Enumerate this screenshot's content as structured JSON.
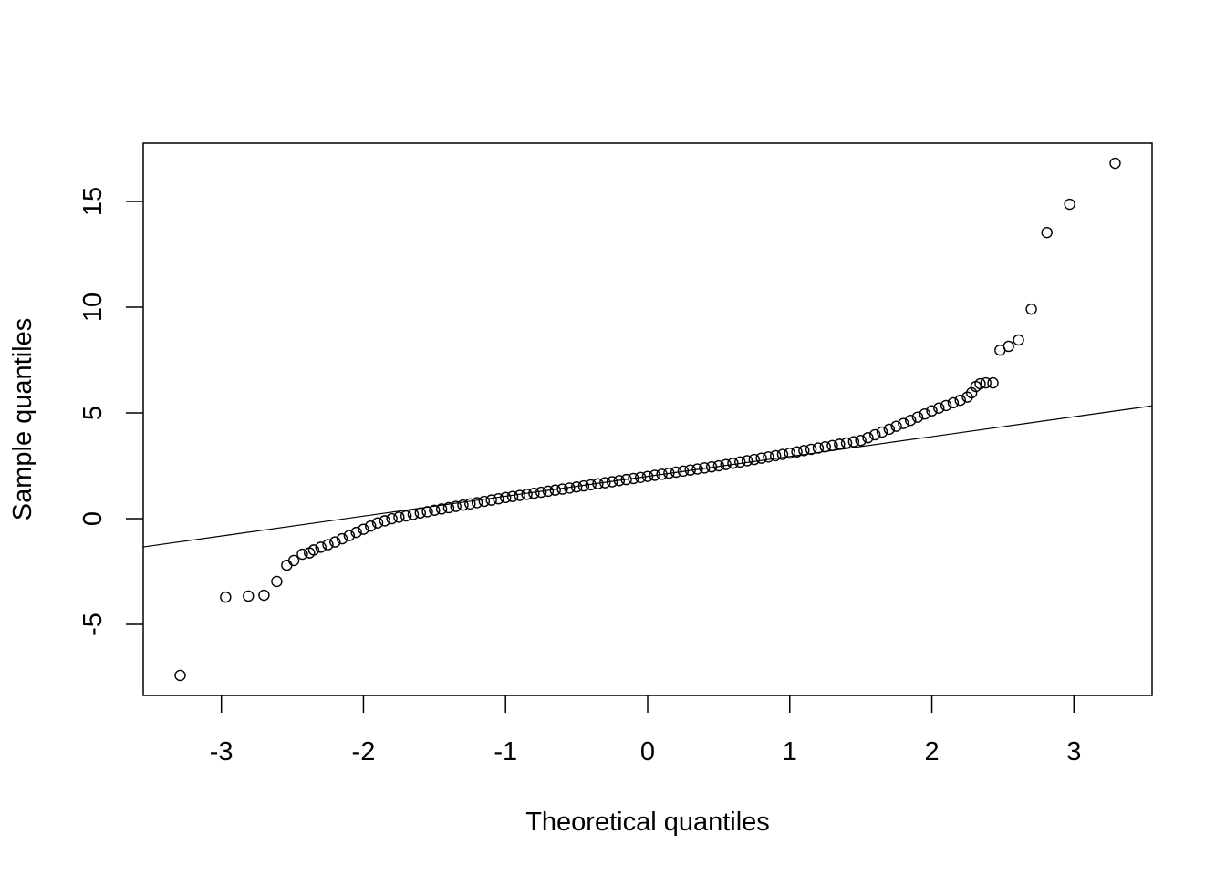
{
  "chart_data": {
    "type": "scatter",
    "title": "",
    "xlabel": "Theoretical quantiles",
    "ylabel": "Sample quantiles",
    "xlim": [
      -3.55,
      3.55
    ],
    "ylim": [
      -8.36,
      17.76
    ],
    "xticks": [
      -3,
      -2,
      -1,
      0,
      1,
      2,
      3
    ],
    "xtick_labels": [
      "-3",
      "-2",
      "-1",
      "0",
      "1",
      "2",
      "3"
    ],
    "yticks": [
      -5,
      0,
      5,
      10,
      15
    ],
    "ytick_labels": [
      "-5",
      "0",
      "5",
      "10",
      "15"
    ],
    "grid": false,
    "marker": "open-circle",
    "colors": {
      "points": "#000000",
      "line": "#000000",
      "background": "#ffffff"
    },
    "reference_line": {
      "intercept": 2.0,
      "slope": 0.94
    },
    "points": [
      [
        -3.29,
        -7.41
      ],
      [
        -2.97,
        -3.71
      ],
      [
        -2.81,
        -3.66
      ],
      [
        -2.7,
        -3.62
      ],
      [
        -2.61,
        -2.97
      ],
      [
        -2.54,
        -2.2
      ],
      [
        -2.49,
        -1.98
      ],
      [
        -2.43,
        -1.68
      ],
      [
        -2.38,
        -1.62
      ],
      [
        -2.35,
        -1.48
      ],
      [
        -2.3,
        -1.35
      ],
      [
        -2.25,
        -1.23
      ],
      [
        -2.2,
        -1.1
      ],
      [
        -2.15,
        -0.95
      ],
      [
        -2.1,
        -0.8
      ],
      [
        -2.05,
        -0.65
      ],
      [
        -2.0,
        -0.5
      ],
      [
        -1.95,
        -0.35
      ],
      [
        -1.9,
        -0.2
      ],
      [
        -1.85,
        -0.1
      ],
      [
        -1.8,
        0.0
      ],
      [
        -1.75,
        0.07
      ],
      [
        -1.7,
        0.13
      ],
      [
        -1.65,
        0.2
      ],
      [
        -1.6,
        0.27
      ],
      [
        -1.55,
        0.33
      ],
      [
        -1.5,
        0.4
      ],
      [
        -1.45,
        0.46
      ],
      [
        -1.4,
        0.52
      ],
      [
        -1.35,
        0.58
      ],
      [
        -1.3,
        0.64
      ],
      [
        -1.25,
        0.7
      ],
      [
        -1.2,
        0.76
      ],
      [
        -1.15,
        0.82
      ],
      [
        -1.1,
        0.88
      ],
      [
        -1.05,
        0.94
      ],
      [
        -1.0,
        1.0
      ],
      [
        -0.95,
        1.05
      ],
      [
        -0.9,
        1.1
      ],
      [
        -0.85,
        1.15
      ],
      [
        -0.8,
        1.2
      ],
      [
        -0.75,
        1.25
      ],
      [
        -0.7,
        1.3
      ],
      [
        -0.65,
        1.35
      ],
      [
        -0.6,
        1.4
      ],
      [
        -0.55,
        1.45
      ],
      [
        -0.5,
        1.5
      ],
      [
        -0.45,
        1.55
      ],
      [
        -0.4,
        1.6
      ],
      [
        -0.35,
        1.65
      ],
      [
        -0.3,
        1.7
      ],
      [
        -0.25,
        1.75
      ],
      [
        -0.2,
        1.8
      ],
      [
        -0.15,
        1.85
      ],
      [
        -0.1,
        1.9
      ],
      [
        -0.05,
        1.95
      ],
      [
        0.0,
        2.0
      ],
      [
        0.05,
        2.05
      ],
      [
        0.1,
        2.1
      ],
      [
        0.15,
        2.15
      ],
      [
        0.2,
        2.2
      ],
      [
        0.25,
        2.25
      ],
      [
        0.3,
        2.3
      ],
      [
        0.35,
        2.35
      ],
      [
        0.4,
        2.4
      ],
      [
        0.45,
        2.45
      ],
      [
        0.5,
        2.5
      ],
      [
        0.55,
        2.56
      ],
      [
        0.6,
        2.62
      ],
      [
        0.65,
        2.68
      ],
      [
        0.7,
        2.74
      ],
      [
        0.75,
        2.8
      ],
      [
        0.8,
        2.86
      ],
      [
        0.85,
        2.92
      ],
      [
        0.9,
        2.98
      ],
      [
        0.95,
        3.04
      ],
      [
        1.0,
        3.1
      ],
      [
        1.05,
        3.16
      ],
      [
        1.1,
        3.22
      ],
      [
        1.15,
        3.28
      ],
      [
        1.2,
        3.34
      ],
      [
        1.25,
        3.4
      ],
      [
        1.3,
        3.46
      ],
      [
        1.35,
        3.52
      ],
      [
        1.4,
        3.58
      ],
      [
        1.45,
        3.64
      ],
      [
        1.5,
        3.7
      ],
      [
        1.55,
        3.83
      ],
      [
        1.6,
        3.97
      ],
      [
        1.65,
        4.1
      ],
      [
        1.7,
        4.23
      ],
      [
        1.75,
        4.37
      ],
      [
        1.8,
        4.5
      ],
      [
        1.85,
        4.65
      ],
      [
        1.9,
        4.8
      ],
      [
        1.95,
        4.95
      ],
      [
        2.0,
        5.1
      ],
      [
        2.05,
        5.23
      ],
      [
        2.1,
        5.35
      ],
      [
        2.15,
        5.48
      ],
      [
        2.2,
        5.6
      ],
      [
        2.25,
        5.75
      ],
      [
        2.28,
        5.95
      ],
      [
        2.31,
        6.25
      ],
      [
        2.34,
        6.38
      ],
      [
        2.38,
        6.42
      ],
      [
        2.43,
        6.42
      ],
      [
        2.48,
        7.97
      ],
      [
        2.54,
        8.15
      ],
      [
        2.61,
        8.45
      ],
      [
        2.7,
        9.91
      ],
      [
        2.81,
        13.53
      ],
      [
        2.97,
        14.87
      ],
      [
        3.29,
        16.81
      ]
    ]
  }
}
